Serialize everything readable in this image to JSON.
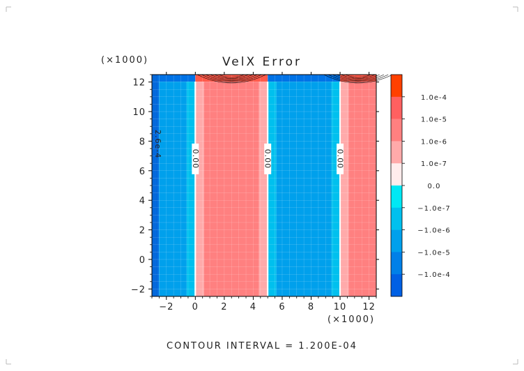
{
  "chart_data": {
    "type": "heatmap",
    "title": "VelX Error",
    "x_multiplier": "(×1000)",
    "y_multiplier": "(×1000)",
    "xlim": [
      -3,
      12.5
    ],
    "ylim": [
      -2.5,
      12.5
    ],
    "x_ticks": [
      -2,
      0,
      2,
      4,
      6,
      8,
      10,
      12
    ],
    "y_ticks": [
      -2,
      0,
      2,
      4,
      6,
      8,
      10,
      12
    ],
    "x_tick_labels": [
      "−2",
      "0",
      "2",
      "4",
      "6",
      "8",
      "10",
      "12"
    ],
    "y_tick_labels": [
      "−2",
      "0",
      "2",
      "4",
      "6",
      "8",
      "10",
      "12"
    ],
    "colorbar": {
      "tick_labels": [
        "1.0e-4",
        "1.0e-5",
        "1.0e-6",
        "1.0e-7",
        "0.0",
        "−1.0e-7",
        "−1.0e-6",
        "−1.0e-5",
        "−1.0e-4"
      ],
      "colors": [
        "#ff4000",
        "#ff6060",
        "#ff8080",
        "#ffaaaa",
        "#ffecec",
        "#00e8f4",
        "#00c0ee",
        "#00a0ec",
        "#0080e8",
        "#0060e4"
      ]
    },
    "bands": [
      {
        "x0": -3.0,
        "x1": -2.5,
        "color": "#0072e6"
      },
      {
        "x0": -2.5,
        "x1": -0.6,
        "color": "#00a0ec"
      },
      {
        "x0": -0.6,
        "x1": -0.05,
        "color": "#00c0ee"
      },
      {
        "x0": -0.05,
        "x1": 0.05,
        "color": "#ffffff"
      },
      {
        "x0": 0.05,
        "x1": 0.6,
        "color": "#ffaaaa"
      },
      {
        "x0": 0.6,
        "x1": 4.4,
        "color": "#ff8080"
      },
      {
        "x0": 4.4,
        "x1": 4.95,
        "color": "#ffaaaa"
      },
      {
        "x0": 4.95,
        "x1": 5.05,
        "color": "#ffffff"
      },
      {
        "x0": 5.05,
        "x1": 5.6,
        "color": "#00c0ee"
      },
      {
        "x0": 5.6,
        "x1": 9.4,
        "color": "#00a0ec"
      },
      {
        "x0": 9.4,
        "x1": 9.95,
        "color": "#00c0ee"
      },
      {
        "x0": 9.95,
        "x1": 10.05,
        "color": "#ffffff"
      },
      {
        "x0": 10.05,
        "x1": 10.6,
        "color": "#ffaaaa"
      },
      {
        "x0": 10.6,
        "x1": 12.5,
        "color": "#ff8080"
      }
    ],
    "contour_labels": [
      {
        "text": "0.00",
        "x": 0.0,
        "y": 6.8
      },
      {
        "text": "0.00",
        "x": 5.0,
        "y": 6.8
      },
      {
        "text": "0.00",
        "x": 10.0,
        "y": 6.8
      },
      {
        "text": "2.6e-4",
        "x": -2.6,
        "y": 7.8
      }
    ],
    "grid": true,
    "legend": "right colorbar"
  },
  "footer": "CONTOUR INTERVAL = 1.200E-04"
}
